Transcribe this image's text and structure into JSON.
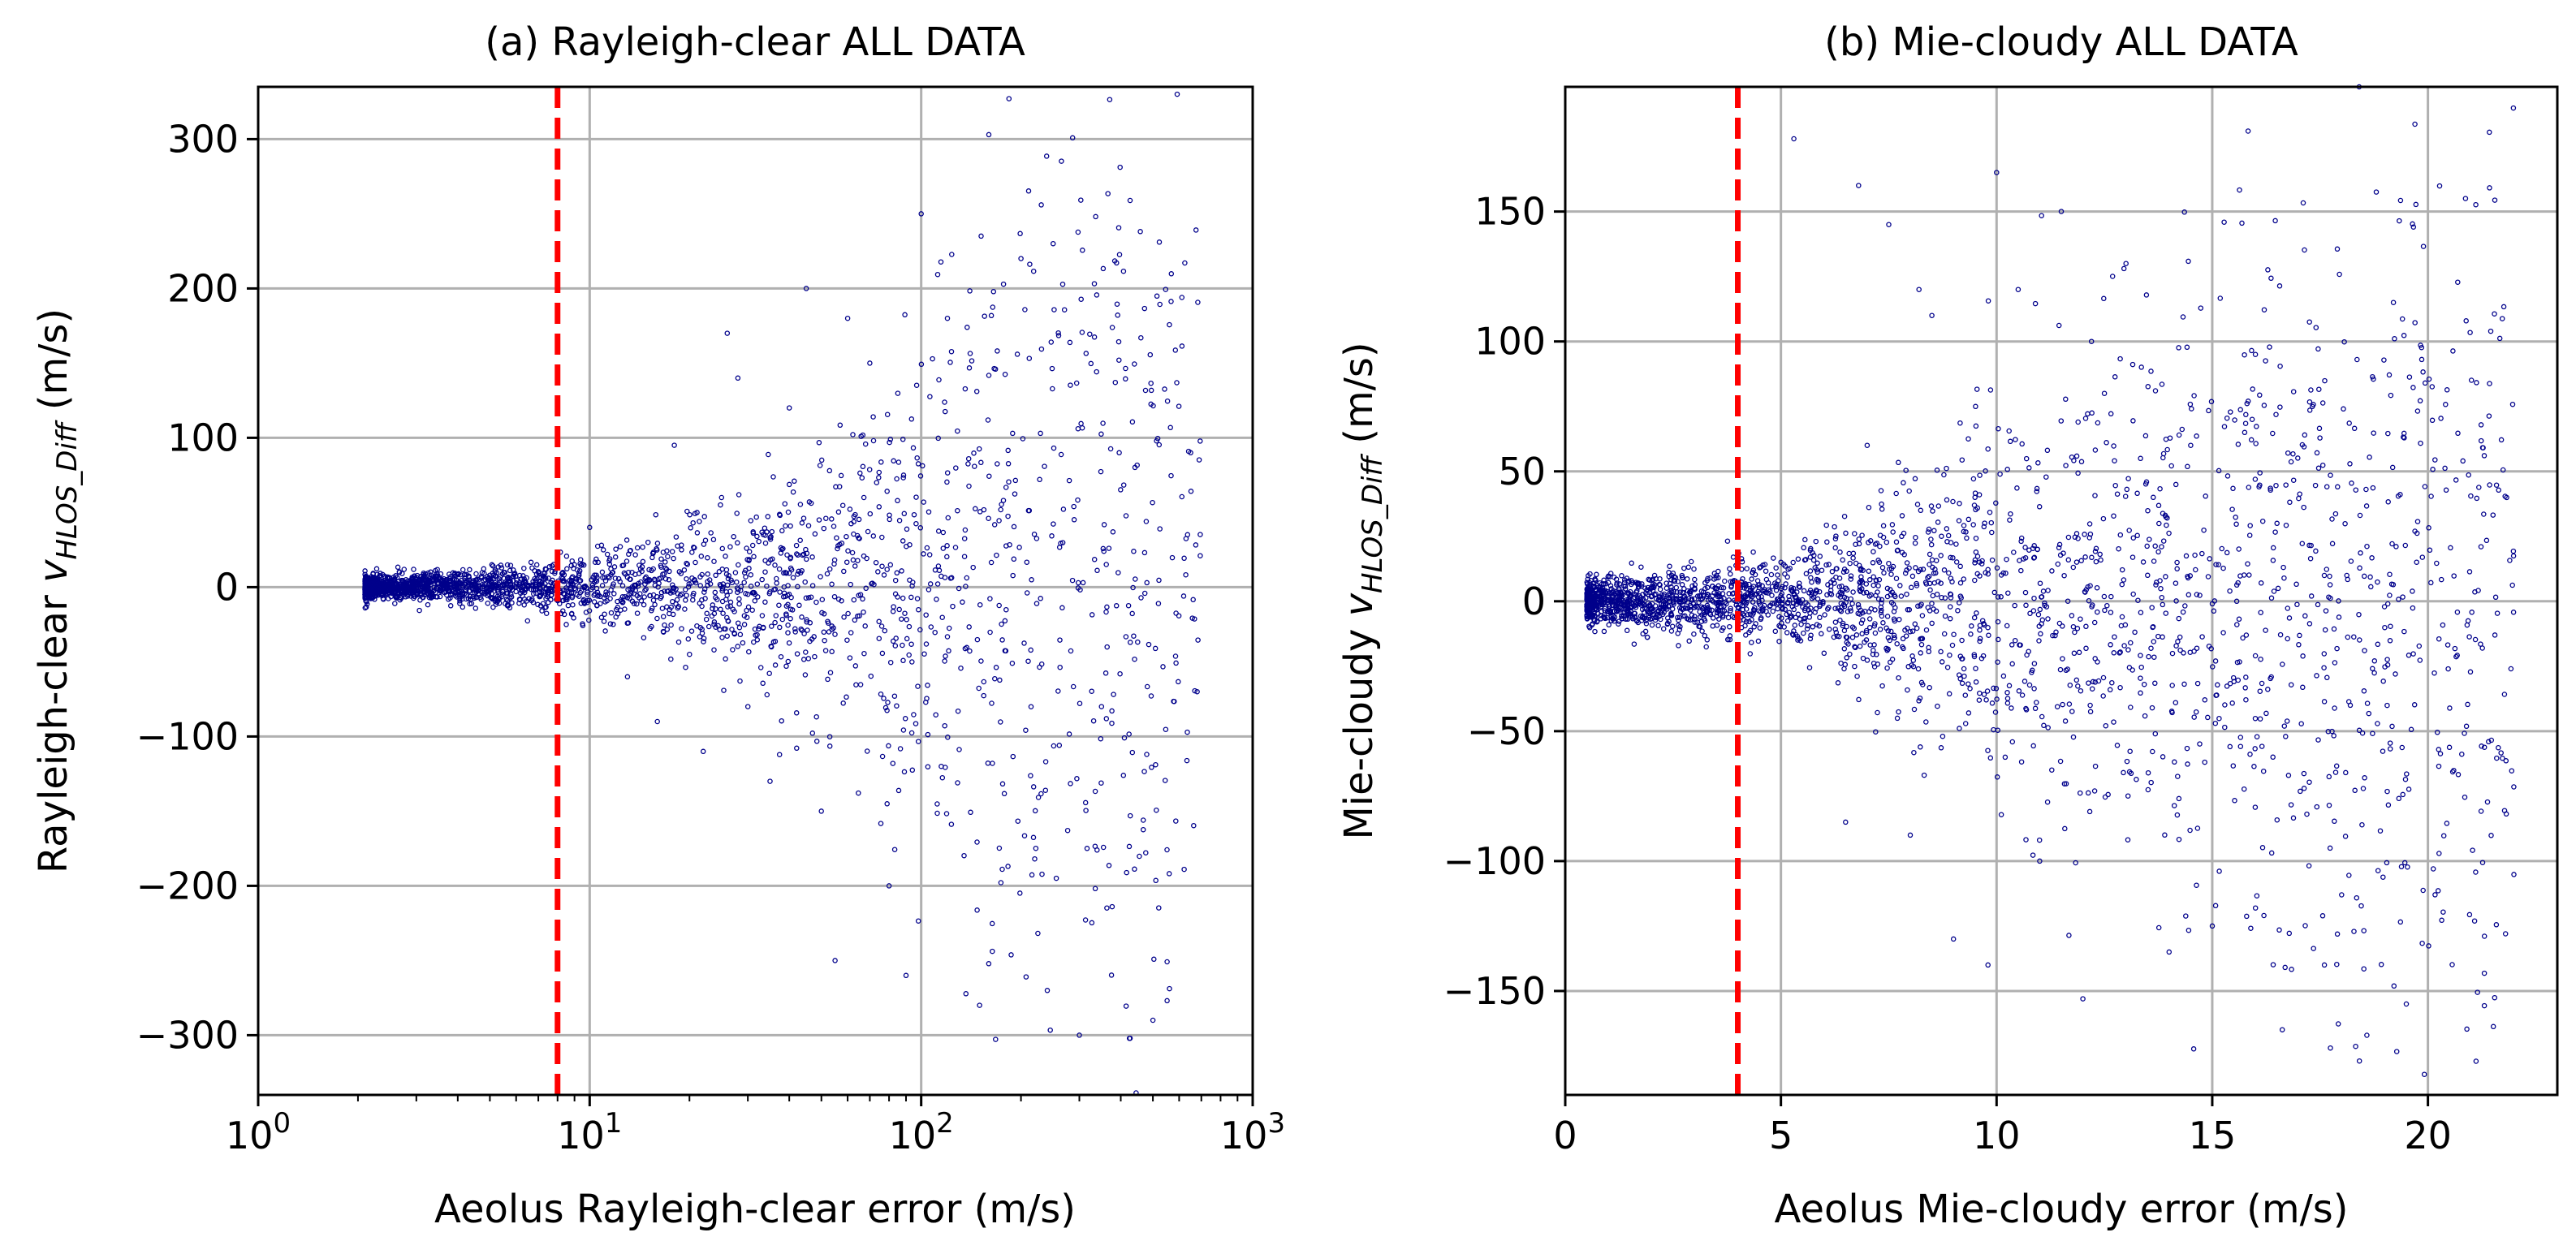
{
  "colors": {
    "points": "#00008b",
    "threshold": "#ff0000",
    "grid": "#b0b0b0",
    "axes": "#000000"
  },
  "chart_data": [
    {
      "type": "scatter",
      "title": "(a) Rayleigh-clear ALL DATA",
      "xlabel": "Aeolus Rayleigh-clear error (m/s)",
      "ylabel": {
        "prefix": "Rayleigh-clear ",
        "var": "v",
        "sub": "HLOS_Diff",
        "suffix": " (m/s)"
      },
      "xscale": "log",
      "xlim": [
        1,
        1000
      ],
      "ylim": [
        -340,
        335
      ],
      "xticks": [
        {
          "value": 1,
          "base": "10",
          "exp": "0"
        },
        {
          "value": 10,
          "base": "10",
          "exp": "1"
        },
        {
          "value": 100,
          "base": "10",
          "exp": "2"
        },
        {
          "value": 1000,
          "base": "10",
          "exp": "3"
        }
      ],
      "yticks": [
        {
          "value": 300,
          "label": "300"
        },
        {
          "value": 200,
          "label": "200"
        },
        {
          "value": 100,
          "label": "100"
        },
        {
          "value": 0,
          "label": "0"
        },
        {
          "value": -100,
          "label": "−100"
        },
        {
          "value": -200,
          "label": "−200"
        },
        {
          "value": -300,
          "label": "−300"
        }
      ],
      "grid": true,
      "threshold_x": 8,
      "sample_points": [
        [
          3.0,
          2
        ],
        [
          4.0,
          -5
        ],
        [
          5.0,
          8
        ],
        [
          6.0,
          -3
        ],
        [
          7.0,
          10
        ],
        [
          9.0,
          15
        ],
        [
          12.0,
          -20
        ],
        [
          15.0,
          30
        ],
        [
          20.0,
          -45
        ],
        [
          25.0,
          60
        ],
        [
          30.0,
          -80
        ],
        [
          40.0,
          120
        ],
        [
          50.0,
          -150
        ],
        [
          60.0,
          180
        ],
        [
          80.0,
          -200
        ],
        [
          100.0,
          250
        ],
        [
          150.0,
          -280
        ],
        [
          160.0,
          303
        ],
        [
          200.0,
          220
        ],
        [
          300.0,
          -300
        ],
        [
          10.0,
          40
        ],
        [
          13.0,
          -60
        ],
        [
          18.0,
          95
        ],
        [
          22.0,
          -110
        ],
        [
          28.0,
          140
        ],
        [
          35.0,
          -130
        ],
        [
          45.0,
          200
        ],
        [
          55.0,
          -250
        ],
        [
          70.0,
          150
        ],
        [
          90.0,
          -260
        ],
        [
          120.0,
          180
        ],
        [
          250.0,
          230
        ],
        [
          350.0,
          -80
        ],
        [
          500.0,
          -290
        ],
        [
          650.0,
          90
        ],
        [
          680.0,
          -70
        ],
        [
          8.5,
          -25
        ],
        [
          11.0,
          25
        ],
        [
          16.0,
          -90
        ],
        [
          26.0,
          170
        ]
      ]
    },
    {
      "type": "scatter",
      "title": "(b) Mie-cloudy ALL DATA",
      "xlabel": "Aeolus Mie-cloudy error (m/s)",
      "ylabel": {
        "prefix": "Mie-cloudy ",
        "var": "v",
        "sub": "HLOS_Diff",
        "suffix": " (m/s)"
      },
      "xscale": "linear",
      "xlim": [
        0,
        23
      ],
      "ylim": [
        -190,
        198
      ],
      "xticks": [
        {
          "value": 0,
          "label": "0"
        },
        {
          "value": 5,
          "label": "5"
        },
        {
          "value": 10,
          "label": "10"
        },
        {
          "value": 15,
          "label": "15"
        },
        {
          "value": 20,
          "label": "20"
        }
      ],
      "yticks": [
        {
          "value": 150,
          "label": "150"
        },
        {
          "value": 100,
          "label": "100"
        },
        {
          "value": 50,
          "label": "50"
        },
        {
          "value": 0,
          "label": "0"
        },
        {
          "value": -50,
          "label": "−50"
        },
        {
          "value": -100,
          "label": "−100"
        },
        {
          "value": -150,
          "label": "−150"
        }
      ],
      "grid": true,
      "threshold_x": 4,
      "sample_points": [
        [
          1.0,
          2
        ],
        [
          2.0,
          -3
        ],
        [
          3.0,
          5
        ],
        [
          4.0,
          -4
        ],
        [
          5.0,
          15
        ],
        [
          5.3,
          178
        ],
        [
          6.0,
          -20
        ],
        [
          7.0,
          60
        ],
        [
          7.5,
          145
        ],
        [
          8.0,
          -90
        ],
        [
          8.5,
          110
        ],
        [
          9.0,
          -130
        ],
        [
          10.0,
          165
        ],
        [
          10.5,
          120
        ],
        [
          11.0,
          -100
        ],
        [
          11.5,
          150
        ],
        [
          12.0,
          -153
        ],
        [
          12.5,
          80
        ],
        [
          13.0,
          130
        ],
        [
          14.0,
          -135
        ],
        [
          14.5,
          60
        ],
        [
          15.0,
          -125
        ],
        [
          16.0,
          95
        ],
        [
          16.5,
          30
        ],
        [
          17.3,
          2
        ],
        [
          17.6,
          -140
        ],
        [
          18.0,
          -113
        ],
        [
          19.2,
          115
        ],
        [
          19.5,
          -155
        ],
        [
          21.8,
          -128
        ],
        [
          6.5,
          -85
        ],
        [
          7.8,
          25
        ],
        [
          9.5,
          40
        ],
        [
          10.2,
          -60
        ],
        [
          11.8,
          -20
        ],
        [
          13.5,
          10
        ],
        [
          12.2,
          100
        ],
        [
          8.2,
          120
        ],
        [
          9.8,
          -140
        ],
        [
          6.8,
          160
        ]
      ]
    }
  ]
}
